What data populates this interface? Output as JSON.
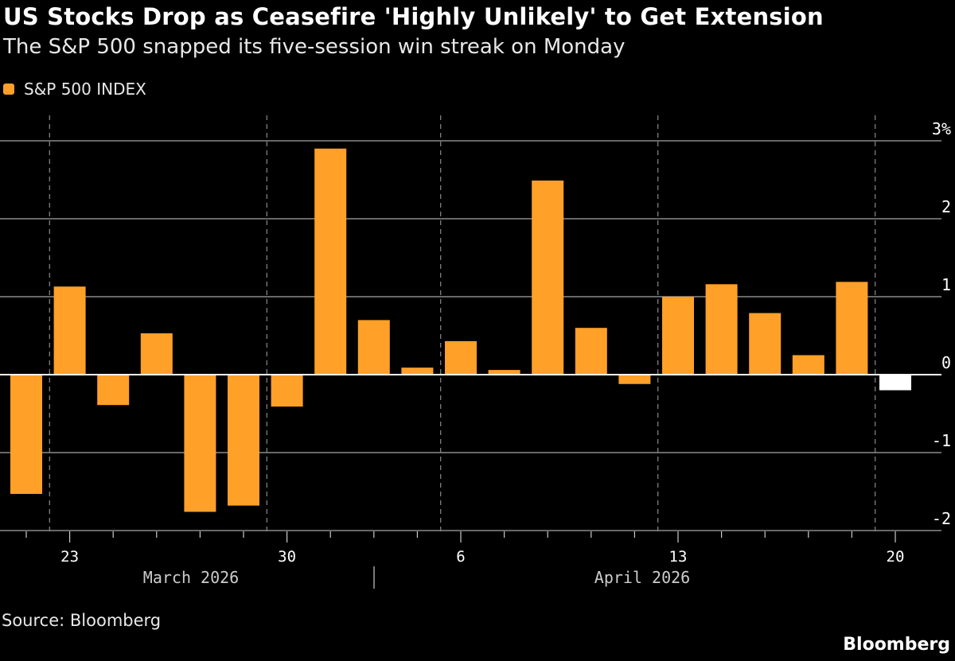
{
  "header": {
    "title": "US Stocks Drop as Ceasefire 'Highly Unlikely' to Get Extension",
    "subtitle": "The S&P 500 snapped its five-session win streak on Monday"
  },
  "footer": {
    "source": "Source: Bloomberg",
    "brand": "Bloomberg"
  },
  "chart_data": {
    "type": "bar",
    "title": "US Stocks Drop as Ceasefire 'Highly Unlikely' to Get Extension",
    "subtitle": "The S&P 500 snapped its five-session win streak on Monday",
    "legend": {
      "entries": [
        "S&P 500 INDEX"
      ],
      "placement": "top-left"
    },
    "series": [
      {
        "name": "S&P 500 INDEX",
        "color": "#FFA028",
        "latest_color": "#FFFFFF",
        "categories": [
          "2026-03-20",
          "2026-03-23",
          "2026-03-24",
          "2026-03-25",
          "2026-03-26",
          "2026-03-27",
          "2026-03-30",
          "2026-03-31",
          "2026-04-01",
          "2026-04-02",
          "2026-04-06",
          "2026-04-07",
          "2026-04-08",
          "2026-04-09",
          "2026-04-10",
          "2026-04-13",
          "2026-04-14",
          "2026-04-15",
          "2026-04-16",
          "2026-04-17",
          "2026-04-20"
        ],
        "values": [
          -1.53,
          1.13,
          -0.39,
          0.53,
          -1.76,
          -1.68,
          -0.41,
          2.9,
          0.7,
          0.09,
          0.43,
          0.06,
          2.49,
          0.6,
          -0.12,
          1.0,
          1.16,
          0.79,
          0.25,
          1.19,
          -0.2
        ]
      }
    ],
    "x_tick_labels": [
      {
        "label": "23",
        "index": 1
      },
      {
        "label": "30",
        "index": 6
      },
      {
        "label": "6",
        "index": 10
      },
      {
        "label": "13",
        "index": 15
      },
      {
        "label": "20",
        "index": 20
      }
    ],
    "month_labels": [
      "March 2026",
      "April 2026"
    ],
    "y_ticks": [
      3,
      2,
      1,
      0,
      -1,
      -2
    ],
    "y_tick_labels": [
      "3%",
      "2",
      "1",
      "0",
      "-1",
      "-2"
    ],
    "ylim": [
      -2,
      3
    ],
    "yaxis_position": "right",
    "grid": true,
    "ylabel": "",
    "xlabel": ""
  }
}
